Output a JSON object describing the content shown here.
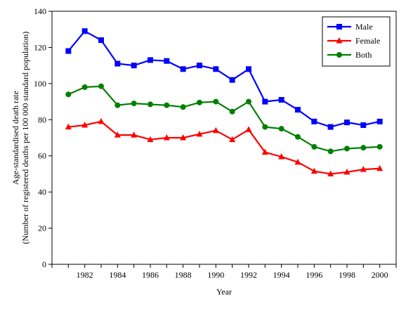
{
  "chart_data": {
    "type": "line",
    "x": [
      1981,
      1982,
      1983,
      1984,
      1985,
      1986,
      1987,
      1988,
      1989,
      1990,
      1991,
      1992,
      1993,
      1994,
      1995,
      1996,
      1997,
      1998,
      1999,
      2000
    ],
    "xlabel": "Year",
    "ylabel_line1": "Age-standardised death rate",
    "ylabel_line2": "(Number of registered deaths per 100 000 standard population)",
    "xlim": [
      1980,
      2001
    ],
    "ylim": [
      0,
      140
    ],
    "x_ticks": [
      1982,
      1984,
      1986,
      1988,
      1990,
      1992,
      1994,
      1996,
      1998,
      2000
    ],
    "y_ticks": [
      0,
      20,
      40,
      60,
      80,
      100,
      120,
      140
    ],
    "grid": false,
    "legend_position": "top-right",
    "series": [
      {
        "name": "Male",
        "color": "#0000ff",
        "marker": "square",
        "values": [
          118,
          129,
          124,
          111,
          110,
          113,
          112.5,
          108,
          110,
          108,
          102,
          108,
          90,
          91,
          85.5,
          79,
          76,
          78.5,
          77,
          79
        ]
      },
      {
        "name": "Female",
        "color": "#ff0000",
        "marker": "triangle",
        "values": [
          76,
          77,
          79,
          71.5,
          71.5,
          69,
          70,
          70,
          72,
          74,
          69,
          74.5,
          62,
          59.5,
          56.5,
          51.5,
          50,
          51,
          52.5,
          53
        ]
      },
      {
        "name": "Both",
        "color": "#008000",
        "marker": "circle",
        "values": [
          94,
          98,
          98.5,
          88,
          89,
          88.5,
          88,
          87,
          89.5,
          90,
          84.5,
          90,
          76,
          75,
          70.5,
          65,
          62.5,
          64,
          64.5,
          65
        ]
      }
    ]
  }
}
